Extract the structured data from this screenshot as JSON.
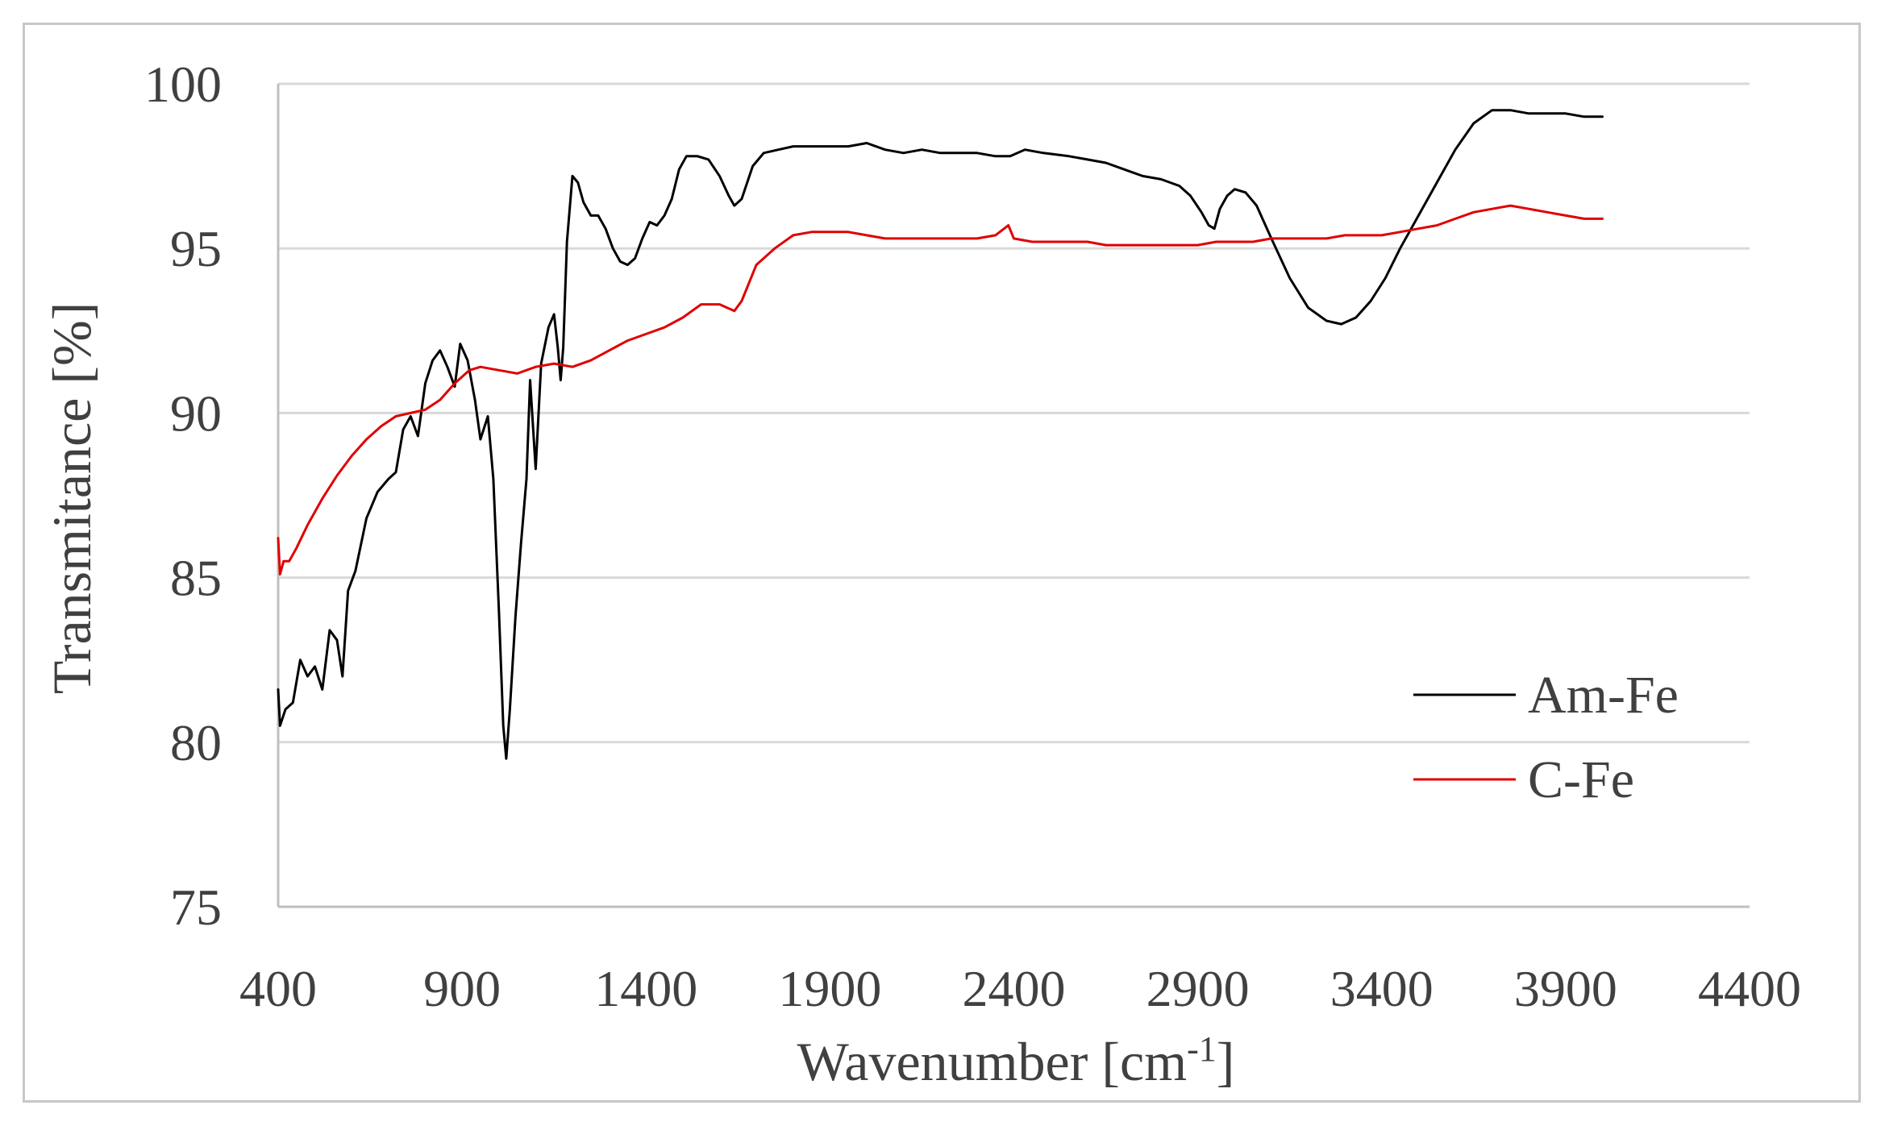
{
  "chart_data": {
    "type": "line",
    "title": "",
    "xlabel": "Wavenumber [cm",
    "xlabel_sup": "-1",
    "xlabel_suffix": "]",
    "ylabel": "Transmitance [%]",
    "xlim": [
      400,
      4400
    ],
    "ylim": [
      75,
      100
    ],
    "x_ticks": [
      "400",
      "900",
      "1400",
      "1900",
      "2400",
      "2900",
      "3400",
      "3900",
      "4400"
    ],
    "y_ticks": [
      "75",
      "80",
      "85",
      "90",
      "95",
      "100"
    ],
    "grid": "horizontal",
    "legend_position": "bottom-right",
    "series": [
      {
        "name": "Am-Fe",
        "color": "#000000",
        "points": [
          [
            400,
            81.6
          ],
          [
            405,
            80.5
          ],
          [
            420,
            81.0
          ],
          [
            440,
            81.2
          ],
          [
            460,
            82.5
          ],
          [
            480,
            82.0
          ],
          [
            500,
            82.3
          ],
          [
            520,
            81.6
          ],
          [
            540,
            83.4
          ],
          [
            560,
            83.1
          ],
          [
            575,
            82.0
          ],
          [
            590,
            84.6
          ],
          [
            610,
            85.2
          ],
          [
            640,
            86.8
          ],
          [
            670,
            87.6
          ],
          [
            700,
            88.0
          ],
          [
            720,
            88.2
          ],
          [
            740,
            89.5
          ],
          [
            760,
            89.9
          ],
          [
            780,
            89.3
          ],
          [
            800,
            90.9
          ],
          [
            820,
            91.6
          ],
          [
            840,
            91.9
          ],
          [
            860,
            91.4
          ],
          [
            880,
            90.8
          ],
          [
            895,
            92.1
          ],
          [
            915,
            91.6
          ],
          [
            935,
            90.4
          ],
          [
            950,
            89.2
          ],
          [
            970,
            89.9
          ],
          [
            985,
            88.0
          ],
          [
            1000,
            84.0
          ],
          [
            1012,
            80.5
          ],
          [
            1020,
            79.5
          ],
          [
            1030,
            81.0
          ],
          [
            1045,
            83.8
          ],
          [
            1060,
            86.0
          ],
          [
            1075,
            88.0
          ],
          [
            1085,
            91.0
          ],
          [
            1100,
            88.3
          ],
          [
            1115,
            91.5
          ],
          [
            1135,
            92.6
          ],
          [
            1150,
            93.0
          ],
          [
            1160,
            92.0
          ],
          [
            1168,
            91.0
          ],
          [
            1175,
            92.0
          ],
          [
            1185,
            95.2
          ],
          [
            1200,
            97.2
          ],
          [
            1215,
            97.0
          ],
          [
            1230,
            96.4
          ],
          [
            1250,
            96.0
          ],
          [
            1270,
            96.0
          ],
          [
            1290,
            95.6
          ],
          [
            1310,
            95.0
          ],
          [
            1330,
            94.6
          ],
          [
            1350,
            94.5
          ],
          [
            1370,
            94.7
          ],
          [
            1390,
            95.3
          ],
          [
            1410,
            95.8
          ],
          [
            1430,
            95.7
          ],
          [
            1450,
            96.0
          ],
          [
            1470,
            96.5
          ],
          [
            1490,
            97.4
          ],
          [
            1510,
            97.8
          ],
          [
            1540,
            97.8
          ],
          [
            1570,
            97.7
          ],
          [
            1600,
            97.2
          ],
          [
            1625,
            96.6
          ],
          [
            1640,
            96.3
          ],
          [
            1660,
            96.5
          ],
          [
            1690,
            97.5
          ],
          [
            1720,
            97.9
          ],
          [
            1760,
            98.0
          ],
          [
            1800,
            98.1
          ],
          [
            1850,
            98.1
          ],
          [
            1900,
            98.1
          ],
          [
            1950,
            98.1
          ],
          [
            2000,
            98.2
          ],
          [
            2050,
            98.0
          ],
          [
            2100,
            97.9
          ],
          [
            2150,
            98.0
          ],
          [
            2200,
            97.9
          ],
          [
            2250,
            97.9
          ],
          [
            2300,
            97.9
          ],
          [
            2350,
            97.8
          ],
          [
            2390,
            97.8
          ],
          [
            2430,
            98.0
          ],
          [
            2480,
            97.9
          ],
          [
            2550,
            97.8
          ],
          [
            2600,
            97.7
          ],
          [
            2650,
            97.6
          ],
          [
            2700,
            97.4
          ],
          [
            2750,
            97.2
          ],
          [
            2800,
            97.1
          ],
          [
            2850,
            96.9
          ],
          [
            2880,
            96.6
          ],
          [
            2910,
            96.1
          ],
          [
            2930,
            95.7
          ],
          [
            2945,
            95.6
          ],
          [
            2960,
            96.2
          ],
          [
            2980,
            96.6
          ],
          [
            3000,
            96.8
          ],
          [
            3030,
            96.7
          ],
          [
            3060,
            96.3
          ],
          [
            3100,
            95.3
          ],
          [
            3150,
            94.1
          ],
          [
            3200,
            93.2
          ],
          [
            3250,
            92.8
          ],
          [
            3290,
            92.7
          ],
          [
            3330,
            92.9
          ],
          [
            3370,
            93.4
          ],
          [
            3410,
            94.1
          ],
          [
            3450,
            95.0
          ],
          [
            3500,
            96.0
          ],
          [
            3550,
            97.0
          ],
          [
            3600,
            98.0
          ],
          [
            3650,
            98.8
          ],
          [
            3700,
            99.2
          ],
          [
            3750,
            99.2
          ],
          [
            3800,
            99.1
          ],
          [
            3850,
            99.1
          ],
          [
            3900,
            99.1
          ],
          [
            3950,
            99.0
          ],
          [
            4000,
            99.0
          ]
        ]
      },
      {
        "name": "C-Fe",
        "color": "#e00000",
        "points": [
          [
            400,
            86.2
          ],
          [
            405,
            85.1
          ],
          [
            415,
            85.5
          ],
          [
            430,
            85.5
          ],
          [
            450,
            85.9
          ],
          [
            480,
            86.6
          ],
          [
            520,
            87.4
          ],
          [
            560,
            88.1
          ],
          [
            600,
            88.7
          ],
          [
            640,
            89.2
          ],
          [
            680,
            89.6
          ],
          [
            720,
            89.9
          ],
          [
            760,
            90.0
          ],
          [
            800,
            90.1
          ],
          [
            840,
            90.4
          ],
          [
            880,
            90.9
          ],
          [
            920,
            91.3
          ],
          [
            950,
            91.4
          ],
          [
            1000,
            91.3
          ],
          [
            1050,
            91.2
          ],
          [
            1100,
            91.4
          ],
          [
            1150,
            91.5
          ],
          [
            1200,
            91.4
          ],
          [
            1250,
            91.6
          ],
          [
            1300,
            91.9
          ],
          [
            1350,
            92.2
          ],
          [
            1400,
            92.4
          ],
          [
            1450,
            92.6
          ],
          [
            1500,
            92.9
          ],
          [
            1550,
            93.3
          ],
          [
            1600,
            93.3
          ],
          [
            1640,
            93.1
          ],
          [
            1660,
            93.4
          ],
          [
            1700,
            94.5
          ],
          [
            1750,
            95.0
          ],
          [
            1800,
            95.4
          ],
          [
            1850,
            95.5
          ],
          [
            1900,
            95.5
          ],
          [
            1950,
            95.5
          ],
          [
            2000,
            95.4
          ],
          [
            2050,
            95.3
          ],
          [
            2100,
            95.3
          ],
          [
            2150,
            95.3
          ],
          [
            2200,
            95.3
          ],
          [
            2250,
            95.3
          ],
          [
            2300,
            95.3
          ],
          [
            2350,
            95.4
          ],
          [
            2385,
            95.7
          ],
          [
            2400,
            95.3
          ],
          [
            2450,
            95.2
          ],
          [
            2500,
            95.2
          ],
          [
            2550,
            95.2
          ],
          [
            2600,
            95.2
          ],
          [
            2650,
            95.1
          ],
          [
            2700,
            95.1
          ],
          [
            2750,
            95.1
          ],
          [
            2800,
            95.1
          ],
          [
            2850,
            95.1
          ],
          [
            2900,
            95.1
          ],
          [
            2950,
            95.2
          ],
          [
            3000,
            95.2
          ],
          [
            3050,
            95.2
          ],
          [
            3100,
            95.3
          ],
          [
            3150,
            95.3
          ],
          [
            3200,
            95.3
          ],
          [
            3250,
            95.3
          ],
          [
            3300,
            95.4
          ],
          [
            3350,
            95.4
          ],
          [
            3400,
            95.4
          ],
          [
            3450,
            95.5
          ],
          [
            3500,
            95.6
          ],
          [
            3550,
            95.7
          ],
          [
            3600,
            95.9
          ],
          [
            3650,
            96.1
          ],
          [
            3700,
            96.2
          ],
          [
            3750,
            96.3
          ],
          [
            3800,
            96.2
          ],
          [
            3850,
            96.1
          ],
          [
            3900,
            96.0
          ],
          [
            3950,
            95.9
          ],
          [
            4000,
            95.9
          ]
        ]
      }
    ]
  }
}
